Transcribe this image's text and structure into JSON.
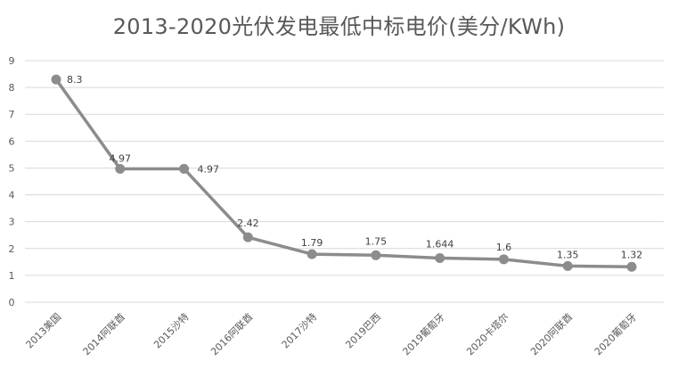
{
  "chart_data": {
    "type": "line",
    "title": "2013-2020光伏发电最低中标电价(美分/KWh)",
    "xlabel": "",
    "ylabel": "",
    "categories": [
      "2013美国",
      "2014阿联酋",
      "2015沙特",
      "2016阿联酋",
      "2017沙特",
      "2019巴西",
      "2019葡萄牙",
      "2020卡塔尔",
      "2020阿联酋",
      "2020葡萄牙"
    ],
    "values": [
      8.3,
      4.97,
      4.97,
      2.42,
      1.79,
      1.75,
      1.644,
      1.6,
      1.35,
      1.32
    ],
    "data_labels": [
      "8.3",
      "4.97",
      "4.97",
      "2.42",
      "1.79",
      "1.75",
      "1.644",
      "1.6",
      "1.35",
      "1.32"
    ],
    "yticks": [
      "0",
      "1",
      "2",
      "3",
      "4",
      "5",
      "6",
      "7",
      "8",
      "9"
    ],
    "ylim": [
      0,
      9
    ],
    "grid": true,
    "legend": "none",
    "line_color": "#8c8c8c",
    "grid_color": "#d9d9d9"
  }
}
